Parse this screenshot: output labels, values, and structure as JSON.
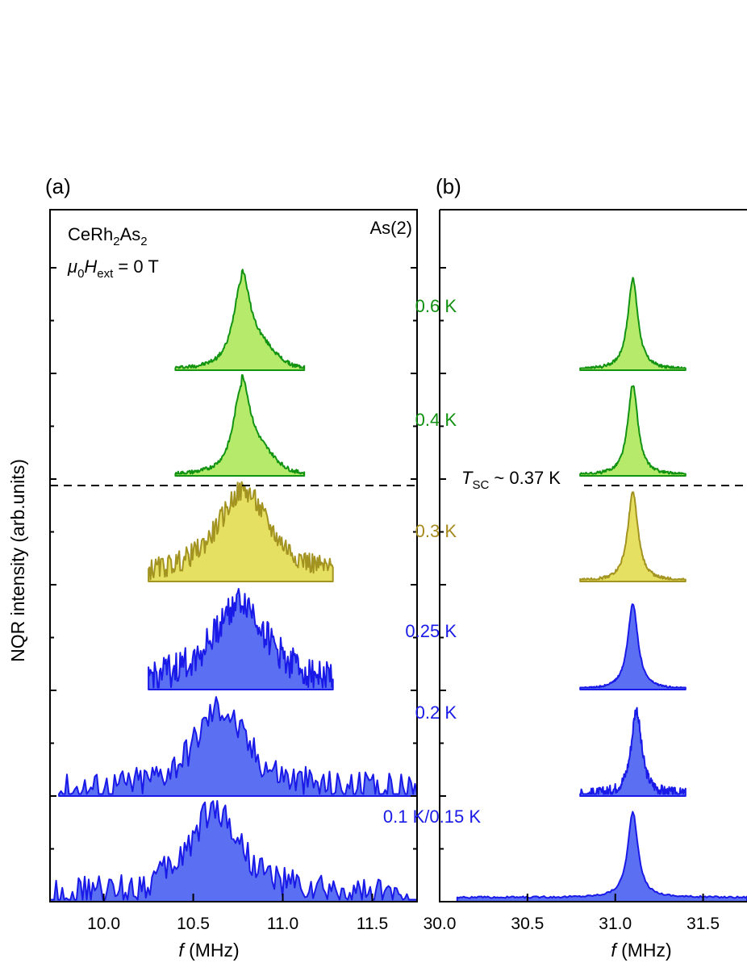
{
  "colors": {
    "green_line": "#129312",
    "green_fill": "#b5ea6b",
    "yellow_line": "#a39320",
    "yellow_fill": "#e6e062",
    "blue_line": "#1a1ae8",
    "blue_fill": "#5b6ff2",
    "green_text": "#109010",
    "yellow_text": "#a78a1e",
    "blue_text": "#1a1ae8"
  },
  "ylabel": "NQR intensity (arb.units)",
  "sample": {
    "name": "CeRh",
    "name_sub": "2",
    "name_mid": "As",
    "name_sub2": "2"
  },
  "field": {
    "mu": "μ",
    "mu_sub": "0",
    "H": "H",
    "H_sub": "ext",
    "value": " = 0 T"
  },
  "tsc": {
    "T": "T",
    "T_sub": "SC",
    "value": " ~ 0.37 K"
  },
  "site_label": "As(2)",
  "temperatures": [
    {
      "label": "0.6 K",
      "color": "green_text"
    },
    {
      "label": "0.4 K",
      "color": "green_text"
    },
    {
      "label": "0.3 K",
      "color": "yellow_text"
    },
    {
      "label": "0.25 K",
      "color": "blue_text"
    },
    {
      "label": "0.2 K",
      "color": "blue_text"
    },
    {
      "label": "0.1 K/0.15 K",
      "color": "blue_text"
    }
  ],
  "chart_data": [
    {
      "type": "area",
      "panel": "(a)",
      "xlabel_italic": "f",
      "xlabel_rest": " (MHz)",
      "xlim": [
        9.7,
        11.75
      ],
      "xticks": [
        "10.0",
        "10.5",
        "11.0",
        "11.5"
      ],
      "xtick_values": [
        10.0,
        10.5,
        11.0,
        11.5
      ],
      "series": [
        {
          "temperature": "0.6 K",
          "x_range": [
            10.4,
            11.12
          ],
          "peak_x": 10.77,
          "peak_height": 0.9,
          "style": "green"
        },
        {
          "temperature": "0.4 K",
          "x_range": [
            10.4,
            11.12
          ],
          "peak_x": 10.77,
          "peak_height": 0.9,
          "style": "green"
        },
        {
          "temperature": "0.3 K",
          "x_range": [
            10.25,
            11.28
          ],
          "peak_x": 10.78,
          "peak_height": 0.88,
          "style": "yellow"
        },
        {
          "temperature": "0.25 K",
          "x_range": [
            10.25,
            11.28
          ],
          "peak_x": 10.76,
          "peak_height": 0.85,
          "style": "blue"
        },
        {
          "temperature": "0.2 K",
          "x_range": [
            9.75,
            11.75
          ],
          "peak_x": 10.65,
          "peak_height": 0.85,
          "style": "blue"
        },
        {
          "temperature": "0.1 K/0.15 K",
          "x_range": [
            9.7,
            11.75
          ],
          "peak_x": 10.62,
          "peak_height": 0.9,
          "style": "blue"
        }
      ]
    },
    {
      "type": "area",
      "panel": "(b)",
      "xlabel_italic": "f",
      "xlabel_rest": " (MHz)",
      "xlim": [
        30.0,
        31.75
      ],
      "xticks": [
        "30.0",
        "30.5",
        "31.0",
        "31.5"
      ],
      "xtick_values": [
        30.0,
        30.5,
        31.0,
        31.5
      ],
      "series": [
        {
          "temperature": "0.6 K",
          "x_range": [
            30.8,
            31.4
          ],
          "peak_x": 31.1,
          "peak_height": 0.9,
          "style": "green"
        },
        {
          "temperature": "0.4 K",
          "x_range": [
            30.8,
            31.4
          ],
          "peak_x": 31.1,
          "peak_height": 0.9,
          "style": "green"
        },
        {
          "temperature": "0.3 K",
          "x_range": [
            30.8,
            31.4
          ],
          "peak_x": 31.1,
          "peak_height": 0.88,
          "style": "yellow"
        },
        {
          "temperature": "0.25 K",
          "x_range": [
            30.8,
            31.4
          ],
          "peak_x": 31.1,
          "peak_height": 0.85,
          "style": "blue"
        },
        {
          "temperature": "0.2 K",
          "x_range": [
            30.8,
            31.4
          ],
          "peak_x": 31.12,
          "peak_height": 0.85,
          "style": "blue"
        },
        {
          "temperature": "0.1 K/0.15 K",
          "x_range": [
            30.1,
            31.75
          ],
          "peak_x": 31.1,
          "peak_height": 0.85,
          "style": "blue"
        }
      ]
    }
  ]
}
